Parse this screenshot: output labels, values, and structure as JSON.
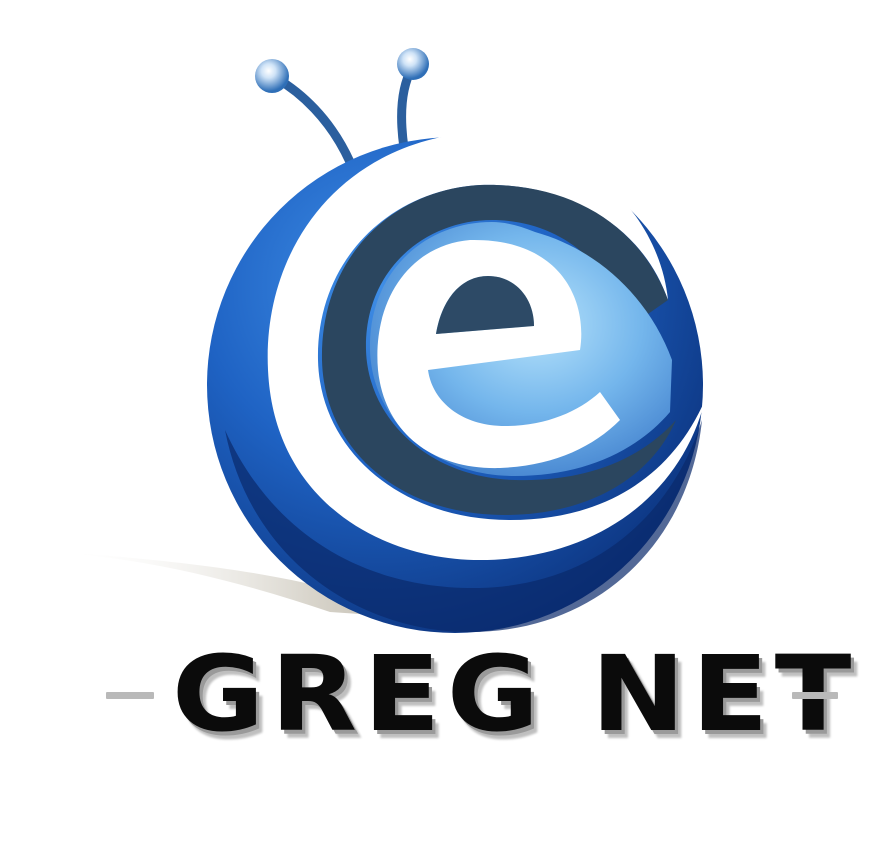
{
  "brand": {
    "name": "GREG NET",
    "colors": {
      "deep_blue": "#0d3d8f",
      "mid_blue": "#1f6fd1",
      "light_blue": "#8ccaf2",
      "dark_slate": "#2c4a63",
      "text_black": "#0b0b0b",
      "dash_gray": "#b9b9b9"
    }
  },
  "icons": {
    "mark": "snail-e-icon"
  }
}
